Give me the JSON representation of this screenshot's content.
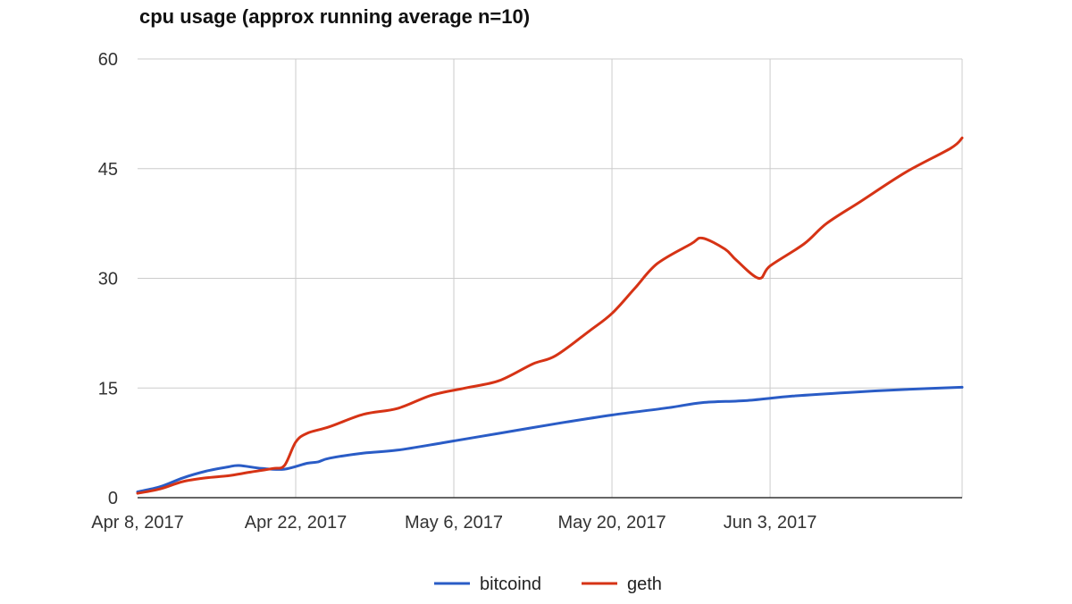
{
  "chart_data": {
    "type": "line",
    "title": "cpu usage (approx running average n=10)",
    "xlabel": "",
    "ylabel": "",
    "x_ticks": [
      {
        "date": "2017-04-08",
        "label": "Apr 8, 2017"
      },
      {
        "date": "2017-04-22",
        "label": "Apr 22, 2017"
      },
      {
        "date": "2017-05-06",
        "label": "May 6, 2017"
      },
      {
        "date": "2017-05-20",
        "label": "May 20, 2017"
      },
      {
        "date": "2017-06-03",
        "label": "Jun 3, 2017"
      }
    ],
    "xlim": [
      "2017-04-08",
      "2017-06-20"
    ],
    "ylim": [
      0,
      60
    ],
    "y_ticks": [
      0,
      15,
      30,
      45,
      60
    ],
    "grid": true,
    "legend_position": "bottom",
    "series": [
      {
        "name": "bitcoind",
        "color": "#2a5cc6",
        "points": [
          [
            "2017-04-08",
            0.8
          ],
          [
            "2017-04-10",
            1.5
          ],
          [
            "2017-04-12",
            2.7
          ],
          [
            "2017-04-14",
            3.6
          ],
          [
            "2017-04-16",
            4.2
          ],
          [
            "2017-04-17",
            4.4
          ],
          [
            "2017-04-19",
            4.0
          ],
          [
            "2017-04-21",
            3.9
          ],
          [
            "2017-04-23",
            4.7
          ],
          [
            "2017-04-24",
            4.9
          ],
          [
            "2017-04-25",
            5.4
          ],
          [
            "2017-04-28",
            6.1
          ],
          [
            "2017-05-01",
            6.5
          ],
          [
            "2017-05-05",
            7.5
          ],
          [
            "2017-05-10",
            8.8
          ],
          [
            "2017-05-15",
            10.1
          ],
          [
            "2017-05-20",
            11.3
          ],
          [
            "2017-05-25",
            12.3
          ],
          [
            "2017-05-28",
            13.0
          ],
          [
            "2017-06-01",
            13.3
          ],
          [
            "2017-06-05",
            13.9
          ],
          [
            "2017-06-10",
            14.4
          ],
          [
            "2017-06-15",
            14.8
          ],
          [
            "2017-06-20",
            15.1
          ]
        ]
      },
      {
        "name": "geth",
        "color": "#d63315",
        "points": [
          [
            "2017-04-08",
            0.6
          ],
          [
            "2017-04-10",
            1.2
          ],
          [
            "2017-04-12",
            2.2
          ],
          [
            "2017-04-14",
            2.7
          ],
          [
            "2017-04-16",
            3.0
          ],
          [
            "2017-04-18",
            3.5
          ],
          [
            "2017-04-20",
            4.0
          ],
          [
            "2017-04-21",
            4.4
          ],
          [
            "2017-04-22",
            7.6
          ],
          [
            "2017-04-23",
            8.8
          ],
          [
            "2017-04-25",
            9.7
          ],
          [
            "2017-04-28",
            11.4
          ],
          [
            "2017-05-01",
            12.2
          ],
          [
            "2017-05-04",
            14.0
          ],
          [
            "2017-05-07",
            15.0
          ],
          [
            "2017-05-10",
            16.0
          ],
          [
            "2017-05-13",
            18.3
          ],
          [
            "2017-05-15",
            19.4
          ],
          [
            "2017-05-18",
            22.8
          ],
          [
            "2017-05-20",
            25.2
          ],
          [
            "2017-05-22",
            28.6
          ],
          [
            "2017-05-24",
            32.0
          ],
          [
            "2017-05-27",
            34.7
          ],
          [
            "2017-05-28",
            35.5
          ],
          [
            "2017-05-30",
            34.0
          ],
          [
            "2017-05-31",
            32.5
          ],
          [
            "2017-06-02",
            30.0
          ],
          [
            "2017-06-03",
            31.7
          ],
          [
            "2017-06-06",
            34.7
          ],
          [
            "2017-06-08",
            37.5
          ],
          [
            "2017-06-11",
            40.5
          ],
          [
            "2017-06-15",
            44.5
          ],
          [
            "2017-06-19",
            47.8
          ],
          [
            "2017-06-20",
            49.2
          ]
        ]
      }
    ]
  }
}
